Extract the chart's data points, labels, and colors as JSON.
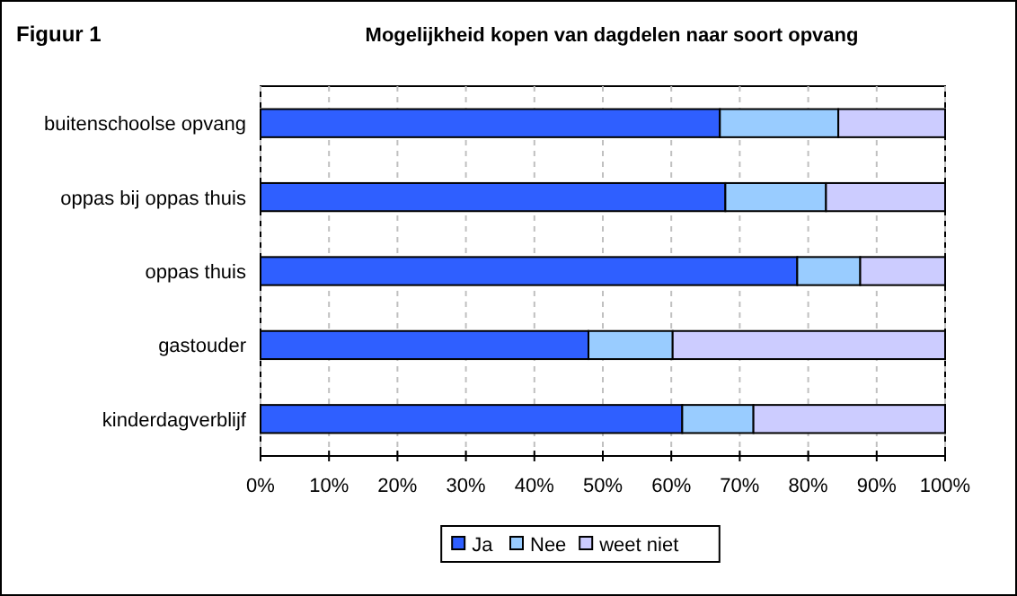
{
  "chart_data": {
    "type": "bar",
    "orientation": "horizontal",
    "stacked": true,
    "title": "Mogelijkheid kopen van dagdelen naar soort opvang",
    "annotations": [
      "Figuur 1"
    ],
    "categories": [
      "buitenschoolse opvang",
      "oppas bij oppas thuis",
      "oppas thuis",
      "gastouder",
      "kinderdagverblijf"
    ],
    "series": [
      {
        "name": "Ja",
        "color": "#2f5fff",
        "values": [
          67.1,
          67.9,
          78.4,
          47.9,
          61.6
        ]
      },
      {
        "name": "Nee",
        "color": "#99ccff",
        "values": [
          17.3,
          14.7,
          9.2,
          12.3,
          10.4
        ]
      },
      {
        "name": "weet niet",
        "color": "#ccccff",
        "values": [
          15.6,
          17.4,
          12.4,
          39.8,
          28.0
        ]
      }
    ],
    "xlim": [
      0,
      100
    ],
    "xticks": [
      {
        "value": 0,
        "label": "0%"
      },
      {
        "value": 10,
        "label": "10%"
      },
      {
        "value": 20,
        "label": "20%"
      },
      {
        "value": 30,
        "label": "30%"
      },
      {
        "value": 40,
        "label": "40%"
      },
      {
        "value": 50,
        "label": "50%"
      },
      {
        "value": 60,
        "label": "60%"
      },
      {
        "value": 70,
        "label": "70%"
      },
      {
        "value": 80,
        "label": "80%"
      },
      {
        "value": 90,
        "label": "90%"
      },
      {
        "value": 100,
        "label": "100%"
      }
    ],
    "grid": "x",
    "legend": "bottom"
  }
}
